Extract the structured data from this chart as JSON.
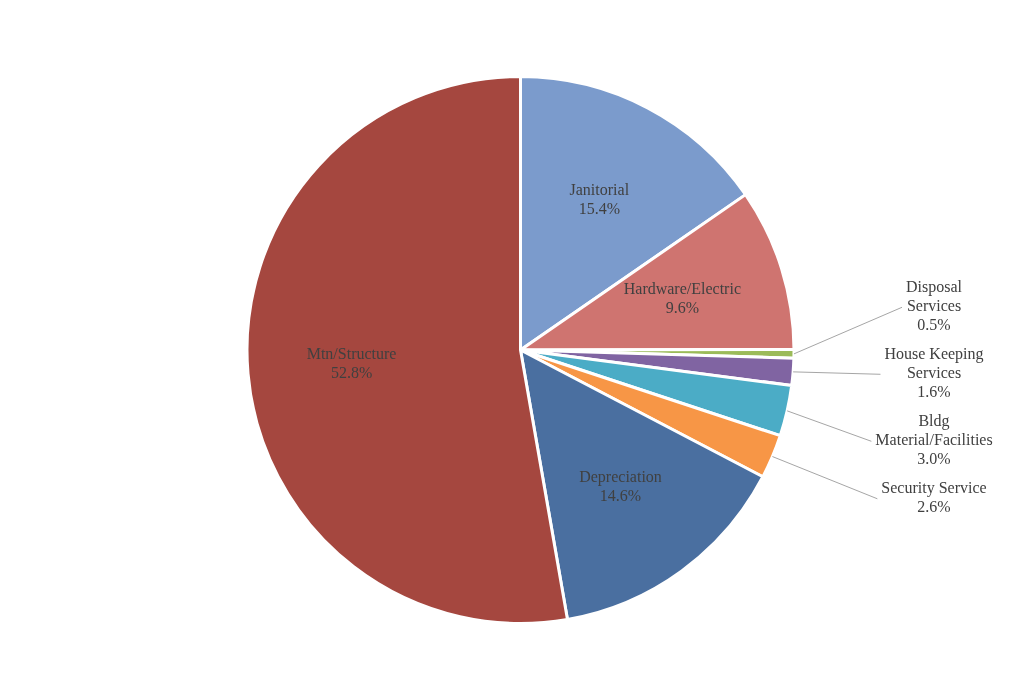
{
  "chart_data": {
    "type": "pie",
    "categories": [
      "Janitorial",
      "Hardware/Electric",
      "Disposal Services",
      "House Keeping Services",
      "Bldg Material/Facilities",
      "Security Service",
      "Depreciation",
      "Mtn/Structure"
    ],
    "values": [
      15.4,
      9.6,
      0.5,
      1.6,
      3.0,
      2.6,
      14.6,
      52.8
    ],
    "colors": [
      "#7b9bcc",
      "#cf7470",
      "#9bbb59",
      "#8064a2",
      "#4bacc6",
      "#f79646",
      "#4a6fa0",
      "#a5473f"
    ],
    "value_labels": [
      "15.4%",
      "9.6%",
      "0.5%",
      "1.6%",
      "3.0%",
      "2.6%",
      "14.6%",
      "52.8%"
    ],
    "legend": false
  }
}
